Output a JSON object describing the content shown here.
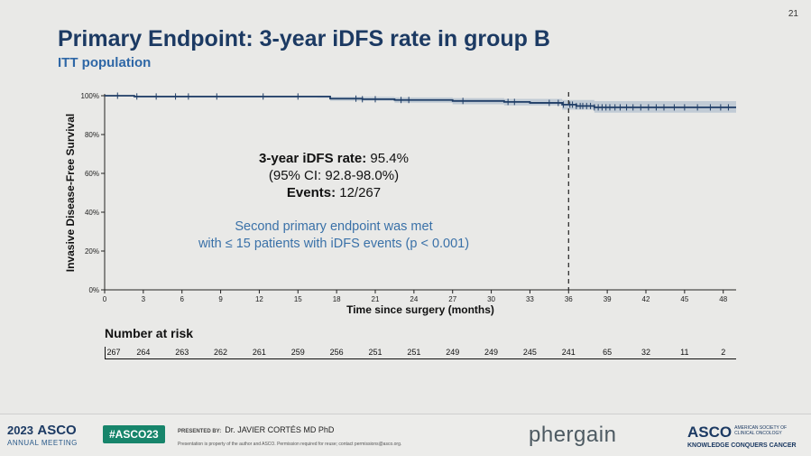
{
  "slide_number": "21",
  "title": {
    "part1": "Primary Endpoint:",
    "part2": " 3-year iDFS rate in group B"
  },
  "subtitle": "ITT population",
  "chart_data": {
    "type": "line",
    "subtype": "kaplan-meier",
    "xlabel": "Time since surgery (months)",
    "ylabel": "Invasive Disease-Free Survival",
    "xlim": [
      0,
      49
    ],
    "ylim": [
      0,
      100
    ],
    "xticks": [
      0,
      3,
      6,
      9,
      12,
      15,
      18,
      21,
      24,
      27,
      30,
      33,
      36,
      39,
      42,
      45,
      48
    ],
    "yticks": [
      "0%",
      "20%",
      "40%",
      "60%",
      "80%",
      "100%"
    ],
    "ytick_values": [
      0,
      20,
      40,
      60,
      80,
      100
    ],
    "reference_line_x": 36,
    "series": [
      {
        "name": "Group B",
        "color": "#1f3d66",
        "ci_color": "#b3c0cf",
        "curve": [
          [
            0,
            100
          ],
          [
            2.3,
            99.6
          ],
          [
            16.5,
            99.6
          ],
          [
            17.5,
            98.5
          ],
          [
            20,
            98.2
          ],
          [
            22.5,
            97.8
          ],
          [
            27,
            97.3
          ],
          [
            31,
            96.8
          ],
          [
            33,
            96.3
          ],
          [
            35.5,
            95.4
          ],
          [
            36.6,
            94.7
          ],
          [
            38,
            94.0
          ],
          [
            49,
            94.0
          ]
        ],
        "ci_upper": [
          [
            0,
            100
          ],
          [
            2.3,
            100
          ],
          [
            16.5,
            100
          ],
          [
            17.5,
            99.4
          ],
          [
            22.5,
            99.1
          ],
          [
            27,
            98.8
          ],
          [
            31,
            98.4
          ],
          [
            35.5,
            97.8
          ],
          [
            38,
            97.2
          ],
          [
            49,
            97.2
          ]
        ],
        "ci_lower": [
          [
            0,
            100
          ],
          [
            2.3,
            99.0
          ],
          [
            16.5,
            98.9
          ],
          [
            17.5,
            97.4
          ],
          [
            22.5,
            96.4
          ],
          [
            27,
            95.6
          ],
          [
            31,
            95.0
          ],
          [
            35.5,
            92.8
          ],
          [
            38,
            91.3
          ],
          [
            49,
            91.3
          ]
        ],
        "censor_times": [
          1,
          2.5,
          4,
          5.5,
          6.5,
          8.7,
          12.3,
          15,
          19.5,
          20,
          21,
          23,
          23.6,
          27.8,
          31.3,
          31.8,
          34.5,
          35.2,
          35.6,
          36.1,
          36.3,
          36.6,
          36.9,
          37.1,
          37.4,
          37.7,
          38.0,
          38.3,
          38.6,
          38.9,
          39.2,
          39.6,
          40.0,
          40.5,
          41.0,
          41.6,
          42.2,
          42.8,
          43.4,
          44.2,
          45.0,
          46.0,
          47.0,
          47.8,
          48.4
        ]
      }
    ],
    "annotations": {
      "rate_label": "3-year iDFS rate:",
      "rate_value": " 95.4%",
      "ci": "(95% CI: 92.8-98.0%)",
      "events_label": "Events:",
      "events_value": " 12/267",
      "endpoint_line1": "Second primary endpoint was met",
      "endpoint_line2": "with ≤ 15 patients with iDFS events (p < 0.001)"
    }
  },
  "risk_table": {
    "title": "Number at risk",
    "times": [
      0,
      3,
      6,
      9,
      12,
      15,
      18,
      21,
      24,
      27,
      30,
      33,
      36,
      39,
      42,
      45,
      48
    ],
    "values": [
      "267",
      "264",
      "263",
      "262",
      "261",
      "259",
      "256",
      "251",
      "251",
      "249",
      "249",
      "245",
      "241",
      "65",
      "32",
      "11",
      "2"
    ]
  },
  "footer": {
    "meeting_year": "2023",
    "meeting_brand": "ASCO",
    "meeting_sub": "ANNUAL MEETING",
    "hashtag": "#ASCO23",
    "presented_by_label": "PRESENTED BY:",
    "presenter": "Dr. JAVIER CORTÉS MD PhD",
    "disclaimer": "Presentation is property of the author and ASCO. Permission required for reuse; contact permissions@asco.org.",
    "sponsor": "phergain",
    "asco_logo": "ASCO",
    "asco_logo_sub1": "AMERICAN SOCIETY OF",
    "asco_logo_sub2": "CLINICAL ONCOLOGY",
    "asco_tagline": "KNOWLEDGE CONQUERS CANCER"
  },
  "colors": {
    "title": "#1c3a63",
    "subtitle": "#2e67a6",
    "annotation_blue": "#3a71a8",
    "hashtag_bg": "#17856b"
  }
}
